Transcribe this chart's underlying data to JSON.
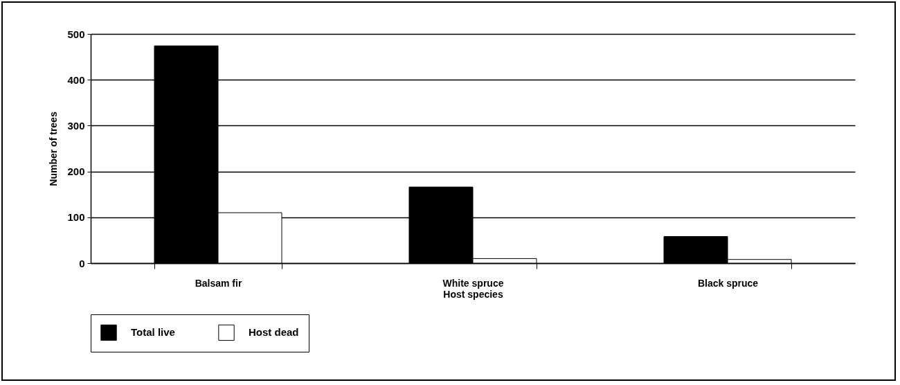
{
  "chart_data": {
    "type": "bar",
    "xlabel": "Host species",
    "ylabel": "Number of trees",
    "categories": [
      "Balsam fir",
      "White spruce",
      "Black spruce"
    ],
    "series": [
      {
        "name": "Total live",
        "color": "#000000",
        "values": [
          474,
          166,
          58
        ]
      },
      {
        "name": "Host dead",
        "color": "#ffffff",
        "values": [
          110,
          10,
          8
        ]
      }
    ],
    "ylim": [
      0,
      500
    ],
    "yticks": [
      0,
      100,
      200,
      300,
      400,
      500
    ],
    "grid": "y",
    "legend": "bottom"
  }
}
